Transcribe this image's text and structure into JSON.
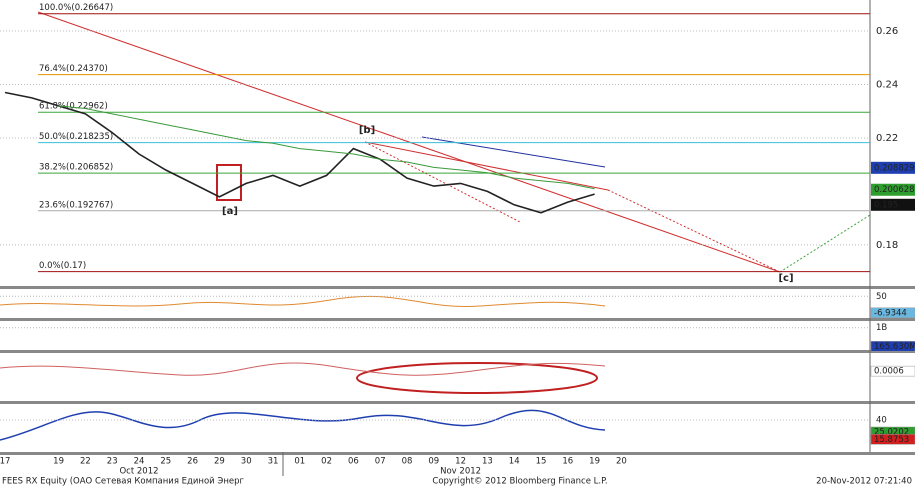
{
  "chart_data": {
    "type": "line",
    "categories": [
      "17",
      null,
      "19",
      "22",
      "23",
      "24",
      "25",
      "26",
      "29",
      "30",
      "31",
      "01",
      "02",
      "06",
      "07",
      "08",
      "09",
      "12",
      "13",
      "14",
      "15",
      "16",
      "19",
      "20"
    ],
    "months": [
      {
        "label": "Oct 2012",
        "at": 5
      },
      {
        "label": "Nov 2012",
        "at": 17
      }
    ],
    "series": [
      {
        "color": "#222222",
        "values": [
          0.237,
          0.235,
          0.232,
          0.229,
          0.222,
          0.214,
          0.208,
          0.203,
          0.198,
          0.203,
          0.206,
          0.202,
          0.206,
          0.216,
          0.212,
          0.205,
          0.202,
          0.203,
          0.2,
          0.195,
          0.192,
          0.196,
          0.199,
          null
        ]
      },
      {
        "color": "#3a9a3a",
        "values": [
          null,
          null,
          0.232,
          0.231,
          0.229,
          0.227,
          0.225,
          0.223,
          0.221,
          0.219,
          0.218,
          0.216,
          0.215,
          0.214,
          0.212,
          0.211,
          0.209,
          0.208,
          0.207,
          0.205,
          0.204,
          0.203,
          0.201,
          null
        ]
      }
    ],
    "ylim": [
      0.165,
      0.2716
    ],
    "yticks": [
      0.18,
      0.22,
      0.24,
      0.26
    ],
    "levels": [
      {
        "label": "100.0%(0.26647)",
        "value": 0.26647,
        "color": "#a01010"
      },
      {
        "label": "76.4%(0.24370)",
        "value": 0.2437,
        "color": "#e69500"
      },
      {
        "label": "61.8%(0.22962)",
        "value": 0.22962,
        "color": "#3aa53a"
      },
      {
        "label": "50.0%(0.218235)",
        "value": 0.218235,
        "color": "#36c0d8"
      },
      {
        "label": "38.2%(0.206852)",
        "value": 0.206852,
        "color": "#3aa53a"
      },
      {
        "label": "23.6%(0.192767)",
        "value": 0.192767,
        "color": "#aaaaaa"
      },
      {
        "label": "0.0%(0.17)",
        "value": 0.17,
        "color": "#a01010"
      }
    ],
    "markers": [
      {
        "value": 0.208829,
        "color": "#1f3fb0"
      },
      {
        "value": 0.200628,
        "color": "#2e9e2e"
      },
      {
        "value": 0.195,
        "color": "#111111"
      }
    ],
    "waves": [
      "[a]",
      "[b]",
      "[c]"
    ]
  },
  "panels": [
    {
      "ylim": [
        -25,
        75
      ],
      "ticks": [
        50
      ],
      "markers": [
        {
          "value": -6.9344,
          "color": "#6ab8e0"
        }
      ]
    },
    {
      "ylim": [
        0,
        1300000000
      ],
      "ticks": [
        {
          "value": 1000000000,
          "label": "1B"
        }
      ],
      "markers": [
        {
          "value": 165630000,
          "label": "165.630M",
          "color": "#1f3fb0"
        }
      ]
    },
    {
      "ylim": [
        -0.005,
        0.004
      ],
      "ticks": [],
      "markers": [
        {
          "value": 0.0006,
          "color": "#ffffff"
        }
      ]
    },
    {
      "ylim": [
        0,
        60
      ],
      "ticks": [
        40
      ],
      "markers": [
        {
          "value": 25.0202,
          "color": "#2e9e2e"
        },
        {
          "value": 15.8753,
          "color": "#d02020"
        }
      ]
    }
  ],
  "footer": {
    "left": "FEES RX Equity (ОАО Сетевая Компания Единой Энерг",
    "center": "Copyright© 2012 Bloomberg Finance L.P.",
    "right": "20-Nov-2012 07:21:40"
  }
}
